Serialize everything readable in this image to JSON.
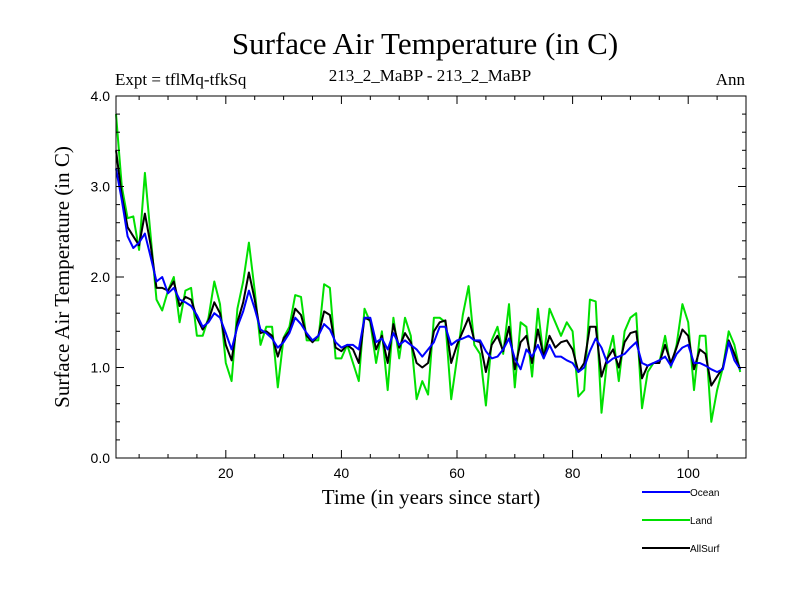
{
  "header": {
    "title": "Surface Air Temperature (in C)",
    "expt": "Expt = tflMq-tfkSq",
    "comparison": "213_2_MaBP - 213_2_MaBP",
    "period": "Ann"
  },
  "chart_data": {
    "type": "line",
    "title": "Surface Air Temperature (in C)",
    "xlabel": "Time (in years since start)",
    "ylabel": "Surface Air Temperature (in C)",
    "xlim": [
      1,
      110
    ],
    "ylim": [
      0,
      4
    ],
    "x_ticks": [
      20,
      40,
      60,
      80,
      100
    ],
    "y_ticks": [
      0,
      1,
      2,
      3,
      4
    ],
    "y_tick_labels": [
      "0.0",
      "1.0",
      "2.0",
      "3.0",
      "4.0"
    ],
    "x_start": 1,
    "series": [
      {
        "name": "Land",
        "color": "#00e000",
        "values": [
          3.8,
          3.0,
          2.65,
          2.67,
          2.3,
          3.15,
          2.45,
          1.75,
          1.63,
          1.85,
          2.0,
          1.5,
          1.85,
          1.88,
          1.35,
          1.35,
          1.55,
          1.95,
          1.7,
          1.05,
          0.85,
          1.65,
          1.95,
          2.38,
          1.85,
          1.25,
          1.45,
          1.45,
          0.78,
          1.33,
          1.45,
          1.8,
          1.78,
          1.3,
          1.3,
          1.3,
          1.92,
          1.88,
          1.1,
          1.1,
          1.25,
          1.05,
          0.85,
          1.65,
          1.5,
          1.05,
          1.4,
          0.75,
          1.55,
          1.1,
          1.55,
          1.35,
          0.65,
          0.85,
          0.7,
          1.55,
          1.55,
          1.5,
          0.65,
          1.1,
          1.58,
          1.9,
          1.25,
          1.15,
          0.58,
          1.3,
          1.45,
          1.15,
          1.7,
          0.78,
          1.5,
          1.45,
          0.9,
          1.65,
          1.1,
          1.65,
          1.5,
          1.35,
          1.5,
          1.4,
          0.68,
          0.75,
          1.75,
          1.73,
          0.5,
          1.1,
          1.35,
          0.85,
          1.4,
          1.55,
          1.6,
          0.55,
          0.95,
          1.05,
          1.05,
          1.35,
          1.0,
          1.25,
          1.7,
          1.5,
          0.75,
          1.35,
          1.35,
          0.4,
          0.75,
          1.0,
          1.4,
          1.25,
          0.95
        ]
      },
      {
        "name": "AllSurf",
        "color": "#000000",
        "values": [
          3.4,
          2.9,
          2.55,
          2.45,
          2.35,
          2.7,
          2.35,
          1.88,
          1.88,
          1.85,
          1.95,
          1.68,
          1.78,
          1.75,
          1.55,
          1.42,
          1.52,
          1.72,
          1.6,
          1.25,
          1.08,
          1.5,
          1.72,
          2.05,
          1.75,
          1.38,
          1.4,
          1.35,
          1.12,
          1.32,
          1.4,
          1.65,
          1.58,
          1.35,
          1.28,
          1.35,
          1.62,
          1.58,
          1.22,
          1.18,
          1.25,
          1.2,
          1.05,
          1.55,
          1.52,
          1.2,
          1.35,
          1.05,
          1.48,
          1.22,
          1.38,
          1.28,
          1.05,
          1.0,
          1.05,
          1.4,
          1.5,
          1.52,
          1.05,
          1.25,
          1.4,
          1.55,
          1.3,
          1.28,
          0.95,
          1.25,
          1.35,
          1.18,
          1.45,
          0.98,
          1.28,
          1.35,
          1.05,
          1.42,
          1.12,
          1.35,
          1.22,
          1.28,
          1.3,
          1.2,
          0.95,
          1.05,
          1.45,
          1.45,
          0.9,
          1.1,
          1.2,
          1.0,
          1.28,
          1.38,
          1.4,
          0.88,
          1.02,
          1.05,
          1.05,
          1.25,
          1.05,
          1.22,
          1.42,
          1.35,
          0.98,
          1.2,
          1.15,
          0.8,
          0.9,
          1.0,
          1.3,
          1.15,
          0.98
        ]
      },
      {
        "name": "Ocean",
        "color": "#0000ff",
        "values": [
          3.2,
          2.85,
          2.45,
          2.32,
          2.38,
          2.48,
          2.22,
          1.95,
          2.0,
          1.82,
          1.88,
          1.75,
          1.72,
          1.68,
          1.58,
          1.45,
          1.5,
          1.6,
          1.55,
          1.38,
          1.2,
          1.45,
          1.62,
          1.85,
          1.65,
          1.42,
          1.38,
          1.32,
          1.22,
          1.28,
          1.38,
          1.55,
          1.48,
          1.38,
          1.3,
          1.35,
          1.48,
          1.42,
          1.28,
          1.22,
          1.25,
          1.25,
          1.2,
          1.55,
          1.55,
          1.28,
          1.32,
          1.2,
          1.38,
          1.25,
          1.3,
          1.25,
          1.2,
          1.12,
          1.2,
          1.28,
          1.45,
          1.45,
          1.25,
          1.3,
          1.32,
          1.35,
          1.3,
          1.3,
          1.18,
          1.1,
          1.12,
          1.2,
          1.32,
          1.1,
          0.98,
          1.2,
          1.12,
          1.25,
          1.1,
          1.25,
          1.12,
          1.12,
          1.08,
          1.05,
          0.95,
          1.0,
          1.18,
          1.32,
          1.22,
          1.05,
          1.1,
          1.12,
          1.15,
          1.22,
          1.28,
          1.05,
          1.02,
          1.05,
          1.08,
          1.12,
          1.02,
          1.15,
          1.22,
          1.25,
          1.05,
          1.05,
          1.02,
          0.98,
          0.95,
          0.98,
          1.28,
          1.08,
          0.98
        ]
      }
    ],
    "legend": [
      "Ocean",
      "Land",
      "AllSurf"
    ]
  }
}
